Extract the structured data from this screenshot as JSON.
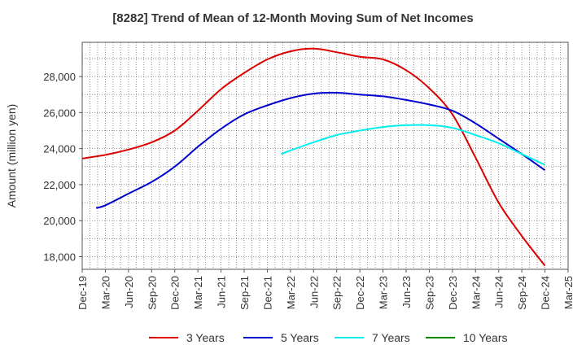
{
  "chart_data": {
    "type": "line",
    "title": "[8282]  Trend of Mean of 12-Month Moving Sum of Net Incomes",
    "ylabel": "Amount (million yen)",
    "xlabel": "",
    "ylim": [
      17300,
      29900
    ],
    "yticks": [
      18000,
      20000,
      22000,
      24000,
      26000,
      28000
    ],
    "ytick_labels": [
      "18,000",
      "20,000",
      "22,000",
      "24,000",
      "26,000",
      "28,000"
    ],
    "xtick_labels": [
      "Dec-19",
      "Mar-20",
      "Jun-20",
      "Sep-20",
      "Dec-20",
      "Mar-21",
      "Jun-21",
      "Sep-21",
      "Dec-21",
      "Mar-22",
      "Jun-22",
      "Sep-22",
      "Dec-22",
      "Mar-23",
      "Jun-23",
      "Sep-23",
      "Dec-23",
      "Mar-24",
      "Jun-24",
      "Sep-24",
      "Dec-24",
      "Mar-25"
    ],
    "grid": true,
    "legend_position": "bottom",
    "series": [
      {
        "name": "3 Years",
        "color": "#dd0000",
        "points": [
          [
            0,
            23450
          ],
          [
            1,
            23650
          ],
          [
            2,
            23950
          ],
          [
            3,
            24350
          ],
          [
            4,
            25000
          ],
          [
            5,
            26100
          ],
          [
            6,
            27300
          ],
          [
            7,
            28200
          ],
          [
            8,
            28950
          ],
          [
            9,
            29400
          ],
          [
            10,
            29550
          ],
          [
            11,
            29350
          ],
          [
            12,
            29100
          ],
          [
            13,
            28950
          ],
          [
            14,
            28350
          ],
          [
            15,
            27350
          ],
          [
            16,
            25900
          ],
          [
            17,
            23500
          ],
          [
            18,
            21000
          ],
          [
            19,
            19150
          ],
          [
            20,
            17500
          ]
        ]
      },
      {
        "name": "5 Years",
        "color": "#0000cc",
        "points": [
          [
            0.6,
            20700
          ],
          [
            1,
            20850
          ],
          [
            2,
            21500
          ],
          [
            3,
            22150
          ],
          [
            4,
            23000
          ],
          [
            5,
            24100
          ],
          [
            6,
            25100
          ],
          [
            7,
            25900
          ],
          [
            8,
            26400
          ],
          [
            9,
            26800
          ],
          [
            10,
            27050
          ],
          [
            11,
            27100
          ],
          [
            12,
            27000
          ],
          [
            13,
            26900
          ],
          [
            14,
            26700
          ],
          [
            15,
            26450
          ],
          [
            16,
            26100
          ],
          [
            17,
            25400
          ],
          [
            18,
            24550
          ],
          [
            19,
            23700
          ],
          [
            20,
            22800
          ]
        ]
      },
      {
        "name": "7 Years",
        "color": "#00eeee",
        "points": [
          [
            8.6,
            23700
          ],
          [
            9,
            23900
          ],
          [
            10,
            24350
          ],
          [
            11,
            24750
          ],
          [
            12,
            25000
          ],
          [
            13,
            25200
          ],
          [
            14,
            25300
          ],
          [
            15,
            25300
          ],
          [
            16,
            25150
          ],
          [
            17,
            24750
          ],
          [
            18,
            24300
          ],
          [
            19,
            23700
          ],
          [
            20,
            23100
          ]
        ]
      },
      {
        "name": "10 Years",
        "color": "#008800",
        "points": []
      }
    ]
  }
}
